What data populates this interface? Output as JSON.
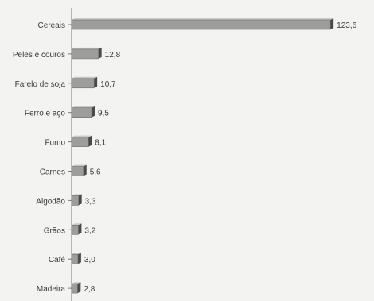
{
  "chart_data": {
    "type": "bar",
    "orientation": "horizontal",
    "categories": [
      "Cereais",
      "Peles e couros",
      "Farelo de soja",
      "Ferro e aço",
      "Fumo",
      "Carnes",
      "Algodão",
      "Grãos",
      "Café",
      "Madeira"
    ],
    "values": [
      123.6,
      12.8,
      10.7,
      9.5,
      8.1,
      5.6,
      3.3,
      3.2,
      3.0,
      2.8
    ],
    "value_labels": [
      "123,6",
      "12,8",
      "10,7",
      "9,5",
      "8,1",
      "5,6",
      "3,3",
      "3,2",
      "3,0",
      "2,8"
    ],
    "xlim": [
      0,
      130
    ],
    "grid": false,
    "legend": "none",
    "colors": {
      "bar_face": "#9d9d9b",
      "bar_top": "#c9c9c7",
      "bar_side": "#4a4a48",
      "axis": "#7a7a7a",
      "text": "#3a3a3a"
    }
  }
}
